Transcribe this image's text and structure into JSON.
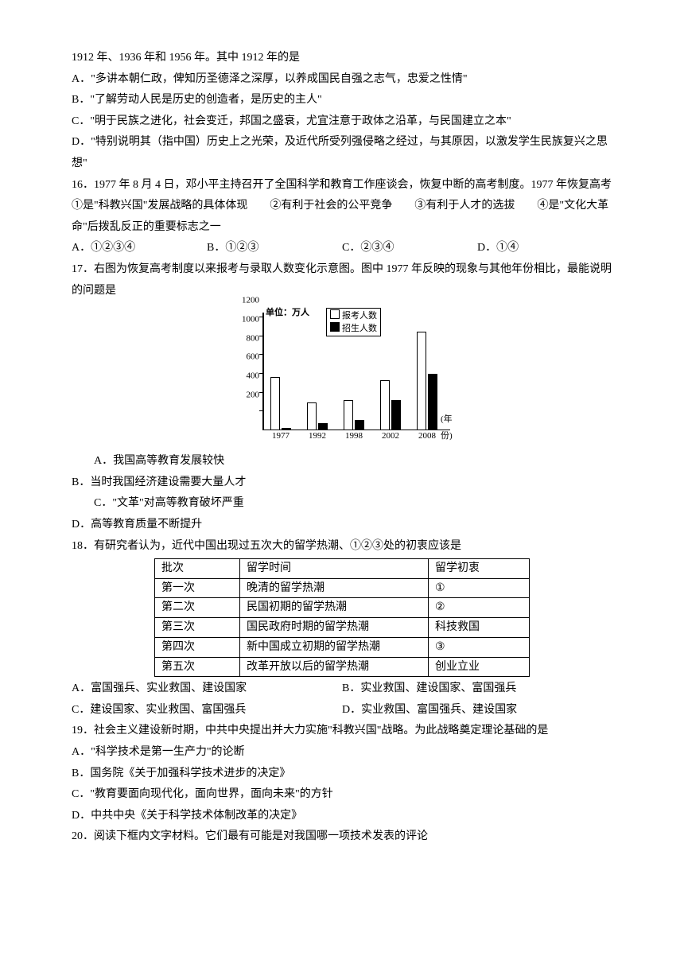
{
  "q15": {
    "intro": "1912 年、1936 年和 1956 年。其中 1912 年的是",
    "A": "A．\"多讲本朝仁政，俾知历圣德泽之深厚，以养成国民自强之志气，忠爱之性情\"",
    "B": "B．\"了解劳动人民是历史的创造者，是历史的主人\"",
    "C": "C．\"明于民族之进化，社会变迁，邦国之盛衰，尤宜注意于政体之沿革，与民国建立之本\"",
    "D": "D．\"特别说明其（指中国）历史上之光荣，及近代所受列强侵略之经过，与其原因，以激发学生民族复兴之思想\""
  },
  "q16": {
    "stem": "16．1977 年 8 月 4 日，邓小平主持召开了全国科学和教育工作座谈会，恢复中断的高考制度。1977 年恢复高考　①是\"科教兴国\"发展战略的具体体现　　②有利于社会的公平竞争　　③有利于人才的选拔　　④是\"文化大革命\"后拨乱反正的重要标志之一",
    "A": "A．①②③④",
    "B": "B．①②③",
    "C": "C．②③④",
    "D": "D．①④"
  },
  "q17": {
    "stem": "17．右图为恢复高考制度以来报考与录取人数变化示意图。图中 1977 年反映的现象与其他年份相比，最能说明的问题是",
    "A": "A．我国高等教育发展较快",
    "B": "B．当时我国经济建设需要大量人才",
    "C": "C．\"文革\"对高等教育破坏严重",
    "D": "D．高等教育质量不断提升"
  },
  "chart": {
    "type": "bar",
    "unit": "单位：万人",
    "legend": {
      "series1": "报考人数",
      "series2": "招生人数"
    },
    "color_applicants": "#ffffff",
    "color_enrolled": "#000000",
    "border_color": "#000000",
    "ylim_max": 1200,
    "yticks": [
      200,
      400,
      600,
      800,
      1000,
      1200
    ],
    "categories": [
      "1977",
      "1992",
      "1998",
      "2002",
      "2008"
    ],
    "xtitle": "(年份)",
    "applicants": [
      570,
      300,
      320,
      530,
      1050
    ],
    "enrolled": [
      27,
      75,
      108,
      320,
      600
    ]
  },
  "q18": {
    "stem": "18．有研究者认为，近代中国出现过五次大的留学热潮、①②③处的初衷应该是",
    "A": "A．富国强兵、实业救国、建设国家",
    "B": "B．实业救国、建设国家、富国强兵",
    "C": "C．建设国家、实业救国、富国强兵",
    "D": "D．实业救国、富国强兵、建设国家",
    "table": {
      "col_widths": [
        "90px",
        "220px",
        "110px"
      ],
      "rows": [
        [
          "批次",
          "留学时间",
          "留学初衷"
        ],
        [
          "第一次",
          "晚清的留学热潮",
          "①"
        ],
        [
          "第二次",
          "民国初期的留学热潮",
          "②"
        ],
        [
          "第三次",
          "国民政府时期的留学热潮",
          "科技救国"
        ],
        [
          "第四次",
          "新中国成立初期的留学热潮",
          "③"
        ],
        [
          "第五次",
          "改革开放以后的留学热潮",
          "创业立业"
        ]
      ]
    }
  },
  "q19": {
    "stem": "19．社会主义建设新时期，中共中央提出并大力实施\"科教兴国\"战略。为此战略奠定理论基础的是",
    "A": "A．\"科学技术是第一生产力\"的论断",
    "B": "B．国务院《关于加强科学技术进步的决定》",
    "C": "C．\"教育要面向现代化，面向世界，面向未来\"的方针",
    "D": "D．中共中央《关于科学技术体制改革的决定》"
  },
  "q20": {
    "stem": "20．阅读下框内文字材料。它们最有可能是对我国哪一项技术发表的评论"
  }
}
